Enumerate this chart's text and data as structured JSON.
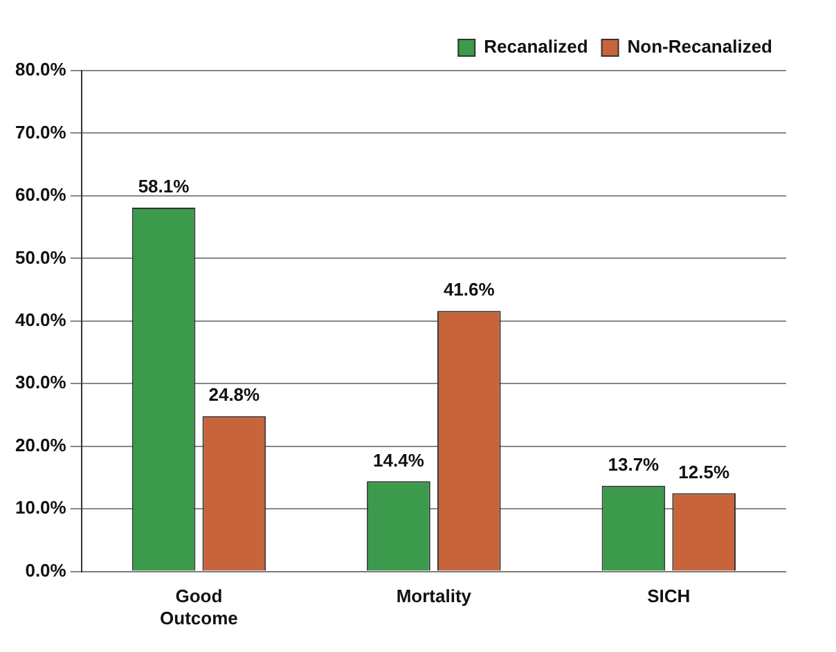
{
  "chart_data": {
    "type": "bar",
    "categories": [
      "Good Outcome",
      "Mortality",
      "SICH"
    ],
    "series": [
      {
        "name": "Recanalized",
        "color": "#3c9a4c",
        "values": [
          58.1,
          14.4,
          13.7
        ],
        "value_labels": [
          "58.1%",
          "14.4%",
          "13.7%"
        ]
      },
      {
        "name": "Non-Recanalized",
        "color": "#c8643c",
        "values": [
          24.8,
          41.6,
          12.5
        ],
        "value_labels": [
          "24.8%",
          "41.6%",
          "12.5%"
        ]
      }
    ],
    "ylim": [
      0,
      80
    ],
    "yticks": [
      {
        "value": 0,
        "label": "0.0%"
      },
      {
        "value": 10,
        "label": "10.0%"
      },
      {
        "value": 20,
        "label": "20.0%"
      },
      {
        "value": 30,
        "label": "30.0%"
      },
      {
        "value": 40,
        "label": "40.0%"
      },
      {
        "value": 50,
        "label": "50.0%"
      },
      {
        "value": 60,
        "label": "60.0%"
      },
      {
        "value": 70,
        "label": "70.0%"
      },
      {
        "value": 80,
        "label": "80.0%"
      }
    ],
    "grid": "y",
    "legend": "top right"
  }
}
